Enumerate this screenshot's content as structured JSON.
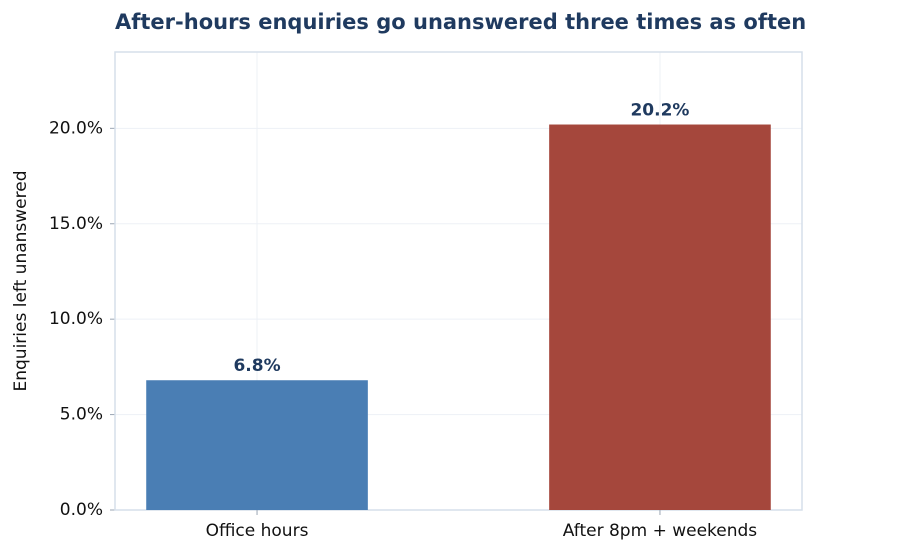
{
  "chart_data": {
    "type": "bar",
    "title": "After-hours enquiries go unanswered three times as often",
    "y_label": "Enquiries left unanswered",
    "categories": [
      "Office hours",
      "After 8pm + weekends"
    ],
    "values": [
      6.8,
      20.2
    ],
    "value_labels": [
      "6.8%",
      "20.2%"
    ],
    "colors": [
      "#4a7eb4",
      "#a5473c"
    ],
    "ylim": [
      0,
      24
    ],
    "yticks": [
      {
        "value": 0,
        "label": "0.0%"
      },
      {
        "value": 5,
        "label": "5.0%"
      },
      {
        "value": 10,
        "label": "10.0%"
      },
      {
        "value": 15,
        "label": "15.0%"
      },
      {
        "value": 20,
        "label": "20.0%"
      }
    ],
    "grid": true
  }
}
